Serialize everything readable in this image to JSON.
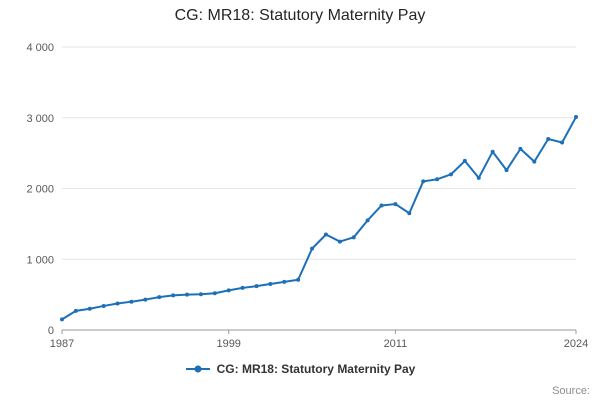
{
  "chart_data": {
    "type": "line",
    "title": "CG: MR18: Statutory Maternity Pay",
    "series_name": "CG: MR18: Statutory Maternity Pay",
    "xlabel": "",
    "ylabel": "",
    "grid": "horizontal",
    "legend_position": "bottom",
    "x": [
      1987,
      1988,
      1989,
      1990,
      1991,
      1992,
      1993,
      1994,
      1995,
      1996,
      1997,
      1998,
      1999,
      2000,
      2001,
      2002,
      2003,
      2004,
      2005,
      2006,
      2007,
      2008,
      2009,
      2010,
      2011,
      2012,
      2013,
      2014,
      2015,
      2016,
      2017,
      2018,
      2019,
      2020,
      2021,
      2022,
      2023,
      2024
    ],
    "values": [
      150,
      270,
      300,
      340,
      375,
      400,
      430,
      465,
      490,
      500,
      505,
      520,
      560,
      595,
      620,
      650,
      680,
      710,
      1150,
      1350,
      1250,
      1310,
      1550,
      1760,
      1780,
      1650,
      2100,
      2130,
      2200,
      2390,
      2150,
      2520,
      2260,
      2560,
      2380,
      2700,
      2650,
      3010
    ],
    "ylim": [
      0,
      4000
    ],
    "yticks": [
      {
        "value": 0,
        "label": "0"
      },
      {
        "value": 1000,
        "label": "1 000"
      },
      {
        "value": 2000,
        "label": "2 000"
      },
      {
        "value": 3000,
        "label": "3 000"
      },
      {
        "value": 4000,
        "label": "4 000"
      }
    ],
    "xticks": [
      {
        "value": 1987,
        "label": "1987"
      },
      {
        "value": 1999,
        "label": "1999"
      },
      {
        "value": 2011,
        "label": "2011"
      },
      {
        "value": 2024,
        "label": "2024"
      }
    ],
    "line_color": "#1d70b8",
    "grid_color": "#e6e6e6",
    "axis_color": "#999999",
    "axis_label_color": "#595959"
  },
  "footer": {
    "source": "Source:"
  }
}
